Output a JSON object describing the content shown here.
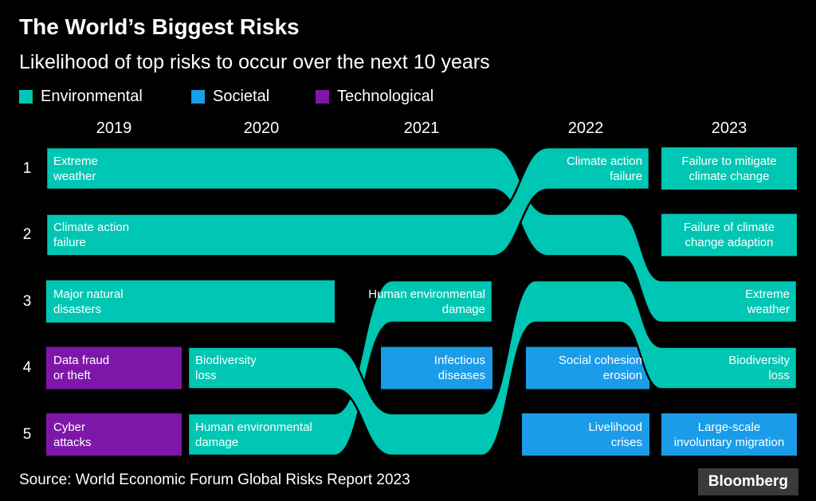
{
  "header": {
    "title": "The World’s Biggest Risks",
    "subtitle": "Likelihood of top risks to occur over the next 10 years"
  },
  "legend": {
    "items": [
      {
        "label": "Environmental",
        "category": "environmental"
      },
      {
        "label": "Societal",
        "category": "societal"
      },
      {
        "label": "Technological",
        "category": "technological"
      }
    ]
  },
  "colors": {
    "environmental": "#00c7b3",
    "societal": "#1b9ce8",
    "technological": "#7e17a8",
    "background": "#000000",
    "text": "#ffffff"
  },
  "footer": {
    "source": "Source: World Economic Forum Global Risks Report 2023",
    "brand": "Bloomberg"
  },
  "chart_data": {
    "type": "bump",
    "title": "The World’s Biggest Risks",
    "subtitle": "Likelihood of top risks to occur over the next 10 years",
    "legend_position": "top",
    "years": [
      "2019",
      "2020",
      "2021",
      "2022",
      "2023"
    ],
    "ranks": [
      "1",
      "2",
      "3",
      "4",
      "5"
    ],
    "categories": [
      "Environmental",
      "Societal",
      "Technological"
    ],
    "risks_by_year": {
      "2019": [
        {
          "rank": 1,
          "risk": "Extreme weather",
          "category": "environmental"
        },
        {
          "rank": 2,
          "risk": "Climate action failure",
          "category": "environmental"
        },
        {
          "rank": 3,
          "risk": "Major natural disasters",
          "category": "environmental"
        },
        {
          "rank": 4,
          "risk": "Data fraud or theft",
          "category": "technological"
        },
        {
          "rank": 5,
          "risk": "Cyber attacks",
          "category": "technological"
        }
      ],
      "2020": [
        {
          "rank": 1,
          "risk": "Extreme weather",
          "category": "environmental"
        },
        {
          "rank": 2,
          "risk": "Climate action failure",
          "category": "environmental"
        },
        {
          "rank": 3,
          "risk": "Major natural disasters",
          "category": "environmental"
        },
        {
          "rank": 4,
          "risk": "Biodiversity loss",
          "category": "environmental"
        },
        {
          "rank": 5,
          "risk": "Human environmental damage",
          "category": "environmental"
        }
      ],
      "2021": [
        {
          "rank": 1,
          "risk": "Extreme weather",
          "category": "environmental"
        },
        {
          "rank": 2,
          "risk": "Climate action failure",
          "category": "environmental"
        },
        {
          "rank": 3,
          "risk": "Human environmental damage",
          "category": "environmental"
        },
        {
          "rank": 4,
          "risk": "Infectious diseases",
          "category": "societal"
        },
        {
          "rank": 5,
          "risk": "Biodiversity loss",
          "category": "environmental"
        }
      ],
      "2022": [
        {
          "rank": 1,
          "risk": "Climate action failure",
          "category": "environmental"
        },
        {
          "rank": 2,
          "risk": "Extreme weather",
          "category": "environmental"
        },
        {
          "rank": 3,
          "risk": "Biodiversity loss",
          "category": "environmental"
        },
        {
          "rank": 4,
          "risk": "Social cohesion erosion",
          "category": "societal"
        },
        {
          "rank": 5,
          "risk": "Livelihood crises",
          "category": "societal"
        }
      ],
      "2023": [
        {
          "rank": 1,
          "risk": "Failure to mitigate climate change",
          "category": "environmental"
        },
        {
          "rank": 2,
          "risk": "Failure of climate change adaption",
          "category": "environmental"
        },
        {
          "rank": 3,
          "risk": "Extreme weather",
          "category": "environmental"
        },
        {
          "rank": 4,
          "risk": "Biodiversity loss",
          "category": "environmental"
        },
        {
          "rank": 5,
          "risk": "Large-scale involuntary migration",
          "category": "societal"
        }
      ]
    },
    "labels": [
      {
        "lines": [
          "Extreme",
          "weather"
        ],
        "year": 0,
        "rank": 1,
        "align": "left"
      },
      {
        "lines": [
          "Climate action",
          "failure"
        ],
        "year": 0,
        "rank": 2,
        "align": "left"
      },
      {
        "lines": [
          "Major natural",
          "disasters"
        ],
        "year": 0,
        "rank": 3,
        "align": "left"
      },
      {
        "lines": [
          "Data fraud",
          "or theft"
        ],
        "year": 0,
        "rank": 4,
        "align": "left"
      },
      {
        "lines": [
          "Cyber",
          "attacks"
        ],
        "year": 0,
        "rank": 5,
        "align": "left"
      },
      {
        "lines": [
          "Biodiversity",
          "loss"
        ],
        "year": 1,
        "rank": 4,
        "align": "left"
      },
      {
        "lines": [
          "Human environmental",
          "damage"
        ],
        "year": 1,
        "rank": 5,
        "align": "left"
      },
      {
        "lines": [
          "Human environmental",
          "damage"
        ],
        "year": 2,
        "rank": 3,
        "align": "right"
      },
      {
        "lines": [
          "Infectious",
          "diseases"
        ],
        "year": 2,
        "rank": 4,
        "align": "right"
      },
      {
        "lines": [
          "Climate action",
          "failure"
        ],
        "year": 3,
        "rank": 1,
        "align": "right"
      },
      {
        "lines": [
          "Social cohesion",
          "erosion"
        ],
        "year": 3,
        "rank": 4,
        "align": "right"
      },
      {
        "lines": [
          "Livelihood",
          "crises"
        ],
        "year": 3,
        "rank": 5,
        "align": "right"
      },
      {
        "lines": [
          "Failure to mitigate",
          "climate change"
        ],
        "year": 4,
        "rank": 1,
        "align": "center"
      },
      {
        "lines": [
          "Failure of climate",
          "change adaption"
        ],
        "year": 4,
        "rank": 2,
        "align": "center"
      },
      {
        "lines": [
          "Extreme",
          "weather"
        ],
        "year": 4,
        "rank": 3,
        "align": "right"
      },
      {
        "lines": [
          "Biodiversity",
          "loss"
        ],
        "year": 4,
        "rank": 4,
        "align": "right"
      },
      {
        "lines": [
          "Large-scale",
          "involuntary migration"
        ],
        "year": 4,
        "rank": 5,
        "align": "center"
      }
    ],
    "flows": [
      {
        "risk": "Human environmental damage",
        "category": "environmental",
        "path": [
          {
            "year": 1,
            "rank": 5
          },
          {
            "year": 2,
            "rank": 3
          }
        ]
      },
      {
        "risk": "Biodiversity loss",
        "category": "environmental",
        "path": [
          {
            "year": 1,
            "rank": 4
          },
          {
            "year": 2,
            "rank": 5
          },
          {
            "year": 3,
            "rank": 3
          },
          {
            "year": 4,
            "rank": 4
          }
        ]
      },
      {
        "risk": "Extreme weather",
        "category": "environmental",
        "path": [
          {
            "year": 0,
            "rank": 1
          },
          {
            "year": 2,
            "rank": 1
          },
          {
            "year": 3,
            "rank": 2
          },
          {
            "year": 4,
            "rank": 3
          }
        ]
      },
      {
        "risk": "Climate action failure",
        "category": "environmental",
        "path": [
          {
            "year": 0,
            "rank": 2
          },
          {
            "year": 2,
            "rank": 2
          },
          {
            "year": 3,
            "rank": 1
          }
        ]
      }
    ],
    "bars": [
      {
        "risk": "Major natural disasters",
        "category": "environmental",
        "rank": 3,
        "from_year": 0,
        "to_year": 1
      },
      {
        "risk": "Data fraud or theft",
        "category": "technological",
        "rank": 4,
        "from_year": 0,
        "to_year": 0
      },
      {
        "risk": "Cyber attacks",
        "category": "technological",
        "rank": 5,
        "from_year": 0,
        "to_year": 0
      },
      {
        "risk": "Infectious diseases",
        "category": "societal",
        "rank": 4,
        "from_year": 2,
        "to_year": 2
      },
      {
        "risk": "Social cohesion erosion",
        "category": "societal",
        "rank": 4,
        "from_year": 3,
        "to_year": 3
      },
      {
        "risk": "Livelihood crises",
        "category": "societal",
        "rank": 5,
        "from_year": 3,
        "to_year": 3
      },
      {
        "risk": "Failure to mitigate climate change",
        "category": "environmental",
        "rank": 1,
        "from_year": 4,
        "to_year": 4
      },
      {
        "risk": "Failure of climate change adaption",
        "category": "environmental",
        "rank": 2,
        "from_year": 4,
        "to_year": 4
      },
      {
        "risk": "Large-scale involuntary migration",
        "category": "societal",
        "rank": 5,
        "from_year": 4,
        "to_year": 4
      }
    ]
  }
}
